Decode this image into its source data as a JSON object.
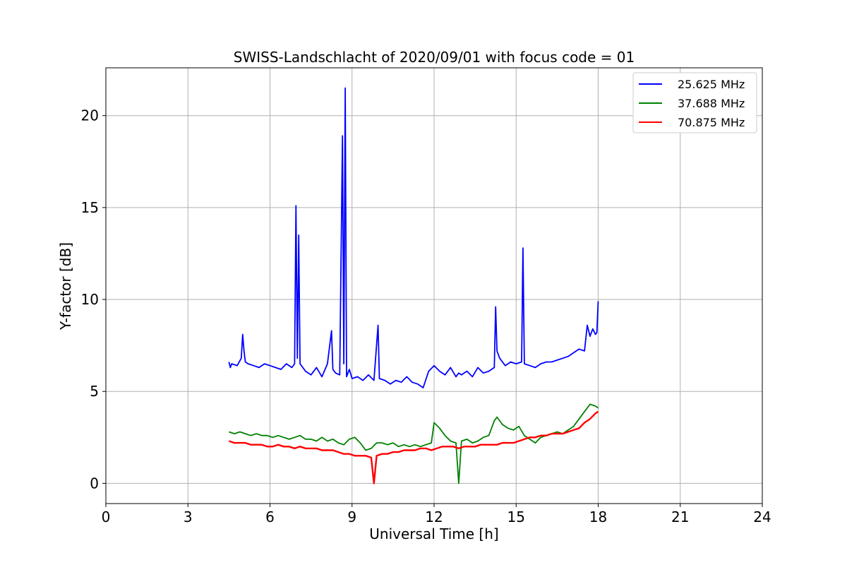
{
  "chart_data": {
    "type": "line",
    "title": "SWISS-Landschlacht of 2020/09/01 with focus code = 01",
    "xlabel": "Universal Time [h]",
    "ylabel": "Y-factor [dB]",
    "xlim": [
      0,
      24
    ],
    "ylim": [
      -1.1,
      22.6
    ],
    "x_ticks": [
      "0",
      "3",
      "6",
      "9",
      "12",
      "15",
      "18",
      "21",
      "24"
    ],
    "y_ticks": [
      "0",
      "5",
      "10",
      "15",
      "20"
    ],
    "grid": true,
    "legend_position": "top-right",
    "series": [
      {
        "name": "25.625 MHz",
        "color": "#0000ff",
        "x": [
          4.5,
          4.55,
          4.6,
          4.8,
          4.95,
          5.0,
          5.05,
          5.1,
          5.2,
          5.4,
          5.6,
          5.8,
          6.0,
          6.2,
          6.4,
          6.6,
          6.8,
          6.9,
          6.95,
          7.0,
          7.05,
          7.1,
          7.3,
          7.5,
          7.7,
          7.9,
          8.1,
          8.25,
          8.3,
          8.4,
          8.55,
          8.65,
          8.7,
          8.75,
          8.8,
          8.9,
          9.0,
          9.2,
          9.4,
          9.6,
          9.8,
          9.95,
          10.0,
          10.2,
          10.4,
          10.6,
          10.8,
          11.0,
          11.2,
          11.4,
          11.6,
          11.8,
          12.0,
          12.2,
          12.4,
          12.6,
          12.8,
          12.9,
          13.0,
          13.2,
          13.4,
          13.6,
          13.8,
          14.0,
          14.2,
          14.25,
          14.3,
          14.4,
          14.6,
          14.8,
          15.0,
          15.2,
          15.25,
          15.3,
          15.5,
          15.7,
          15.9,
          16.1,
          16.3,
          16.5,
          16.7,
          16.9,
          17.1,
          17.3,
          17.5,
          17.6,
          17.7,
          17.8,
          17.9,
          17.95,
          18.0
        ],
        "y": [
          6.6,
          6.3,
          6.5,
          6.4,
          6.8,
          8.1,
          7.2,
          6.6,
          6.5,
          6.4,
          6.3,
          6.5,
          6.4,
          6.3,
          6.2,
          6.5,
          6.3,
          6.5,
          15.1,
          6.8,
          13.5,
          6.5,
          6.1,
          5.9,
          6.3,
          5.8,
          6.5,
          8.3,
          6.2,
          6.0,
          5.9,
          18.9,
          6.5,
          21.5,
          5.8,
          6.2,
          5.7,
          5.8,
          5.6,
          5.9,
          5.6,
          8.6,
          5.7,
          5.6,
          5.4,
          5.6,
          5.5,
          5.8,
          5.5,
          5.4,
          5.2,
          6.1,
          6.4,
          6.1,
          5.9,
          6.3,
          5.8,
          6.0,
          5.9,
          6.1,
          5.8,
          6.3,
          6.0,
          6.1,
          6.3,
          9.6,
          7.2,
          6.8,
          6.4,
          6.6,
          6.5,
          6.6,
          12.8,
          6.5,
          6.4,
          6.3,
          6.5,
          6.6,
          6.6,
          6.7,
          6.8,
          6.9,
          7.1,
          7.3,
          7.2,
          8.6,
          8.0,
          8.4,
          8.1,
          8.2,
          9.9
        ]
      },
      {
        "name": "37.688 MHz",
        "color": "#008000",
        "x": [
          4.5,
          4.7,
          4.9,
          5.1,
          5.3,
          5.5,
          5.7,
          5.9,
          6.1,
          6.3,
          6.5,
          6.7,
          6.9,
          7.1,
          7.3,
          7.5,
          7.7,
          7.9,
          8.1,
          8.3,
          8.5,
          8.7,
          8.9,
          9.1,
          9.3,
          9.5,
          9.7,
          9.9,
          10.1,
          10.3,
          10.5,
          10.7,
          10.9,
          11.1,
          11.3,
          11.5,
          11.7,
          11.9,
          12.0,
          12.2,
          12.4,
          12.6,
          12.8,
          12.9,
          13.0,
          13.2,
          13.4,
          13.6,
          13.8,
          14.0,
          14.2,
          14.3,
          14.5,
          14.7,
          14.9,
          15.1,
          15.3,
          15.5,
          15.7,
          15.9,
          16.1,
          16.3,
          16.5,
          16.7,
          16.9,
          17.1,
          17.3,
          17.5,
          17.7,
          17.9,
          18.0
        ],
        "y": [
          2.8,
          2.7,
          2.8,
          2.7,
          2.6,
          2.7,
          2.6,
          2.6,
          2.5,
          2.6,
          2.5,
          2.4,
          2.5,
          2.6,
          2.4,
          2.4,
          2.3,
          2.5,
          2.3,
          2.4,
          2.2,
          2.1,
          2.4,
          2.5,
          2.2,
          1.8,
          1.9,
          2.2,
          2.2,
          2.1,
          2.2,
          2.0,
          2.1,
          2.0,
          2.1,
          2.0,
          2.1,
          2.2,
          3.3,
          3.0,
          2.6,
          2.3,
          2.2,
          0.0,
          2.3,
          2.4,
          2.2,
          2.3,
          2.5,
          2.6,
          3.4,
          3.6,
          3.2,
          3.0,
          2.9,
          3.1,
          2.6,
          2.4,
          2.2,
          2.5,
          2.6,
          2.7,
          2.8,
          2.7,
          2.9,
          3.1,
          3.5,
          3.9,
          4.3,
          4.2,
          4.1
        ]
      },
      {
        "name": "70.875 MHz",
        "color": "#ff0000",
        "x": [
          4.5,
          4.7,
          4.9,
          5.1,
          5.3,
          5.5,
          5.7,
          5.9,
          6.1,
          6.3,
          6.5,
          6.7,
          6.9,
          7.1,
          7.3,
          7.5,
          7.7,
          7.9,
          8.1,
          8.3,
          8.5,
          8.7,
          8.9,
          9.1,
          9.3,
          9.5,
          9.7,
          9.8,
          9.9,
          10.1,
          10.3,
          10.5,
          10.7,
          10.9,
          11.1,
          11.3,
          11.5,
          11.7,
          11.9,
          12.1,
          12.3,
          12.5,
          12.7,
          12.9,
          13.1,
          13.3,
          13.5,
          13.7,
          13.9,
          14.1,
          14.3,
          14.5,
          14.7,
          14.9,
          15.1,
          15.3,
          15.5,
          15.7,
          15.9,
          16.1,
          16.3,
          16.5,
          16.7,
          16.9,
          17.1,
          17.3,
          17.5,
          17.7,
          17.9,
          18.0
        ],
        "y": [
          2.3,
          2.2,
          2.2,
          2.2,
          2.1,
          2.1,
          2.1,
          2.0,
          2.0,
          2.1,
          2.0,
          2.0,
          1.9,
          2.0,
          1.9,
          1.9,
          1.9,
          1.8,
          1.8,
          1.8,
          1.7,
          1.6,
          1.6,
          1.5,
          1.5,
          1.5,
          1.4,
          0.0,
          1.5,
          1.6,
          1.6,
          1.7,
          1.7,
          1.8,
          1.8,
          1.8,
          1.9,
          1.9,
          1.8,
          1.9,
          2.0,
          2.0,
          2.0,
          1.9,
          2.0,
          2.0,
          2.0,
          2.1,
          2.1,
          2.1,
          2.1,
          2.2,
          2.2,
          2.2,
          2.3,
          2.4,
          2.5,
          2.5,
          2.6,
          2.6,
          2.7,
          2.7,
          2.7,
          2.8,
          2.9,
          3.0,
          3.3,
          3.5,
          3.8,
          3.9
        ]
      }
    ]
  }
}
